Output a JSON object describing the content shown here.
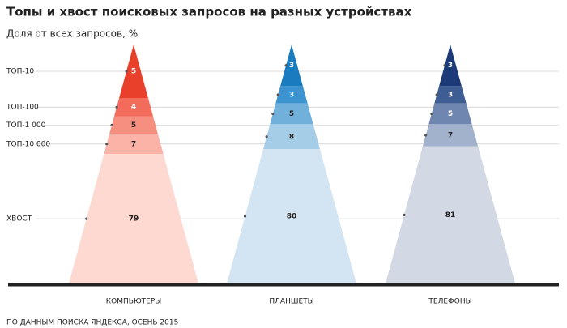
{
  "chart_data": {
    "type": "pyramid",
    "title": "Топы и хвост поисковых запросов на разных устройствах",
    "subtitle": "Доля от всех запросов, %",
    "categories": [
      "ТОП-10",
      "ТОП-100",
      "ТОП-1 000",
      "ТОП-10 000",
      "ХВОСТ"
    ],
    "series": [
      {
        "name": "КОМПЬЮТЕРЫ",
        "colors": [
          "#e8402a",
          "#f26b5b",
          "#f78f80",
          "#fab3a6",
          "#fdd9d2"
        ],
        "values": [
          5,
          4,
          5,
          7,
          79
        ]
      },
      {
        "name": "ПЛАНШЕТЫ",
        "colors": [
          "#1a7bbf",
          "#3d93cf",
          "#72b0dc",
          "#a6cde8",
          "#d3e5f3"
        ],
        "values": [
          3,
          3,
          5,
          8,
          80
        ]
      },
      {
        "name": "ТЕЛЕФОНЫ",
        "colors": [
          "#1c3a78",
          "#3e5d93",
          "#6f86b0",
          "#a2b1cc",
          "#d2d9e5"
        ],
        "values": [
          3,
          3,
          5,
          7,
          81
        ]
      }
    ],
    "source": "ПО ДАННЫМ ПОИСКА ЯНДЕКСА, ОСЕНЬ 2015"
  }
}
